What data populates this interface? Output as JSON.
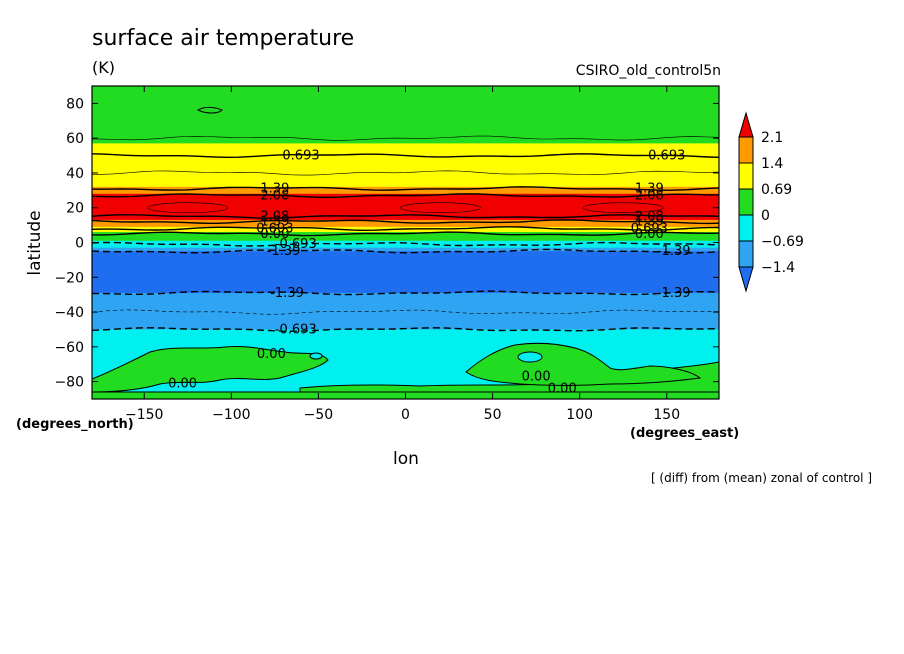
{
  "title": "surface air temperature",
  "units": "(K)",
  "dataset": "CSIRO_old_control5n",
  "footnote": "[ (diff) from (mean) zonal of control ]",
  "colors": {
    "c_neg2": "#1f6ef0",
    "c_neg1": "#2fa4f2",
    "c_neg0": "#00f0f0",
    "c_pos0": "#21dc21",
    "c_pos1": "#ffff00",
    "c_pos2": "#ff9a00",
    "c_pos3": "#f00000",
    "line": "#000000"
  },
  "chart_data": {
    "type": "contour",
    "title": "surface air temperature",
    "units": "(K)",
    "xlabel": "lon",
    "ylabel": "latitude",
    "x_units": "(degrees_east)",
    "y_units": "(degrees_north)",
    "xlim": [
      -180,
      180
    ],
    "ylim": [
      -90,
      90
    ],
    "x_ticks": [
      -150,
      -100,
      -50,
      0,
      50,
      100,
      150
    ],
    "y_ticks": [
      80,
      60,
      40,
      20,
      0,
      -20,
      -40,
      -60,
      -80
    ],
    "colorbar": {
      "levels": [
        -1.4,
        -0.69,
        0,
        0.69,
        1.4,
        2.1
      ],
      "labels": [
        "2.1",
        "1.4",
        "0.69",
        "0",
        "−0.69",
        "−1.4"
      ],
      "band_colors": [
        "#f00000",
        "#ff9a00",
        "#ffff00",
        "#21dc21",
        "#00f0f0",
        "#2fa4f2",
        "#1f6ef0"
      ]
    },
    "bands": [
      {
        "lat_top": 90,
        "lat_bottom": 57,
        "color": "#21dc21"
      },
      {
        "lat_top": 57,
        "lat_bottom": 50,
        "color": "#ffff00"
      },
      {
        "lat_top": 50,
        "lat_bottom": 32,
        "color": "#ffff00"
      },
      {
        "lat_top": 32,
        "lat_bottom": 28,
        "color": "#ff9a00"
      },
      {
        "lat_top": 28,
        "lat_bottom": 13,
        "color": "#f00000"
      },
      {
        "lat_top": 13,
        "lat_bottom": 9,
        "color": "#ff9a00"
      },
      {
        "lat_top": 9,
        "lat_bottom": 6,
        "color": "#ffff00"
      },
      {
        "lat_top": 6,
        "lat_bottom": 1,
        "color": "#21dc21"
      },
      {
        "lat_top": 1,
        "lat_bottom": -3,
        "color": "#00f0f0"
      },
      {
        "lat_top": -3,
        "lat_bottom": -5,
        "color": "#2fa4f2"
      },
      {
        "lat_top": -5,
        "lat_bottom": -29,
        "color": "#1f6ef0"
      },
      {
        "lat_top": -29,
        "lat_bottom": -50,
        "color": "#2fa4f2"
      },
      {
        "lat_top": -50,
        "lat_bottom": -90,
        "color": "#00f0f0"
      }
    ],
    "contours": [
      {
        "level": 0.693,
        "lat": 50,
        "dashed": false,
        "label": "0.693",
        "label_lons": [
          -60,
          150
        ]
      },
      {
        "level": 1.39,
        "lat": 31,
        "dashed": false,
        "label": "1.39",
        "label_lons": [
          -75,
          140
        ]
      },
      {
        "level": 2.08,
        "lat": 27,
        "dashed": false,
        "label": "2.08",
        "label_lons": [
          -75,
          140
        ]
      },
      {
        "level": 2.08,
        "lat": 15,
        "dashed": false,
        "label": "2.08",
        "label_lons": [
          -75,
          140
        ]
      },
      {
        "level": 1.39,
        "lat": 12,
        "dashed": false,
        "label": "1.39",
        "label_lons": [
          -75,
          140
        ]
      },
      {
        "level": 0.693,
        "lat": 8,
        "dashed": false,
        "label": "0.693",
        "label_lons": [
          -75,
          140
        ]
      },
      {
        "level": 0.0,
        "lat": 5,
        "dashed": false,
        "label": "0.00",
        "label_lons": [
          -75,
          140
        ]
      },
      {
        "level": -0.693,
        "lat": -1,
        "dashed": true,
        "label": "-0.693",
        "label_lons": [
          -63
        ]
      },
      {
        "level": -1.39,
        "lat": -5,
        "dashed": true,
        "label": "-1.39",
        "label_lons": [
          -70,
          154
        ]
      },
      {
        "level": -1.39,
        "lat": -29,
        "dashed": true,
        "label": "-1.39",
        "label_lons": [
          -68,
          154
        ]
      },
      {
        "level": -0.693,
        "lat": -50,
        "dashed": true,
        "label": "-0.693",
        "label_lons": [
          -63
        ]
      }
    ],
    "antarctic_zero_labels": [
      {
        "label": "0.00",
        "lon": -77,
        "lat": -64
      },
      {
        "label": "0.00",
        "lon": -128,
        "lat": -81
      },
      {
        "label": "0.00",
        "lon": 75,
        "lat": -77
      },
      {
        "label": "0.00",
        "lon": 90,
        "lat": -84
      }
    ],
    "arctic_island": {
      "lon": -118,
      "lat": 76
    }
  }
}
